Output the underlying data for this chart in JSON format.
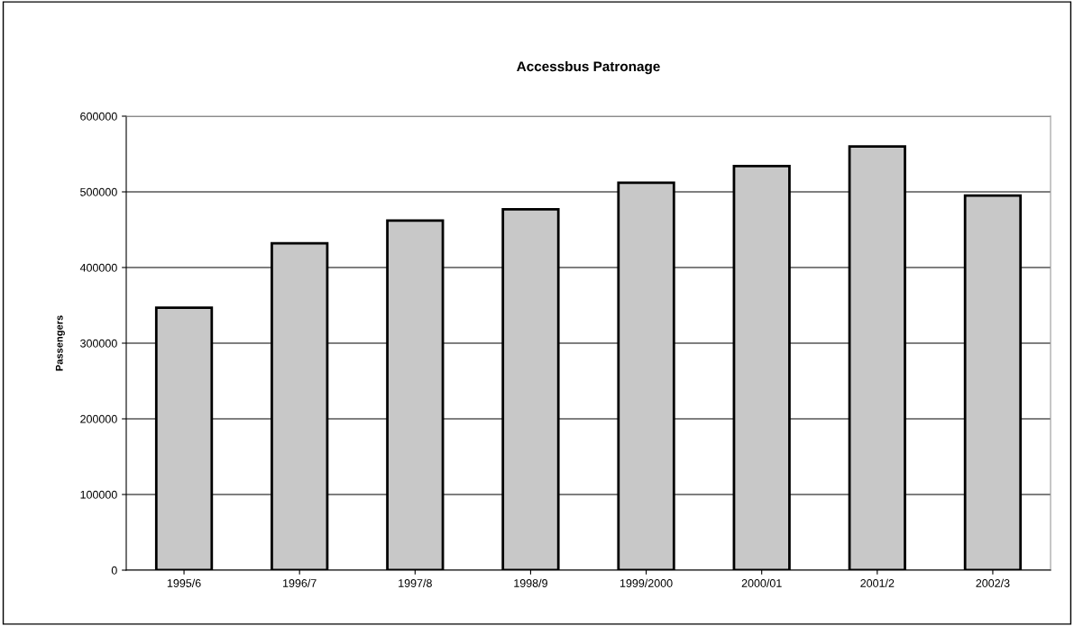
{
  "chart_data": {
    "type": "bar",
    "title": "Accessbus Patronage",
    "ylabel": "Passengers",
    "categories": [
      "1995/6",
      "1996/7",
      "1997/8",
      "1998/9",
      "1999/2000",
      "2000/01",
      "2001/2",
      "2002/3"
    ],
    "values": [
      347000,
      432000,
      462000,
      477000,
      512000,
      534000,
      560000,
      495000
    ],
    "color": "#c8c8c8",
    "ylim": [
      0,
      600000
    ],
    "yticks": [
      0,
      100000,
      200000,
      300000,
      400000,
      500000,
      600000
    ],
    "grid": "y",
    "legend": false
  }
}
